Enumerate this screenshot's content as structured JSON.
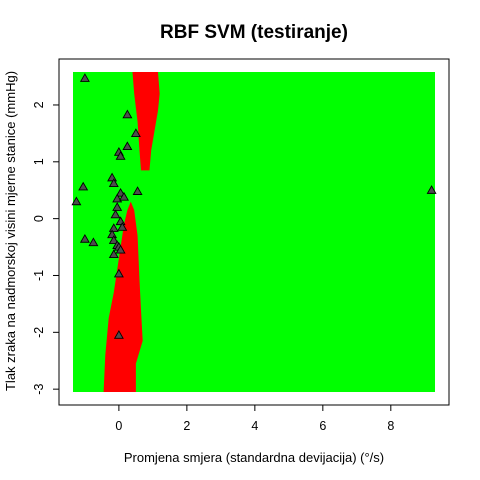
{
  "chart_data": {
    "type": "scatter",
    "title": "RBF SVM (testiranje)",
    "xlabel": "Promjena smjera (standardna devijacija) (°/s)",
    "ylabel": "Tlak zraka na nadmorskoj visini mjerne stanice (mmHg)",
    "xlim": [
      -1.35,
      9.3
    ],
    "ylim": [
      -3.05,
      2.58
    ],
    "x_ticks": [
      "0",
      "2",
      "4",
      "6",
      "8"
    ],
    "y_ticks": [
      "-3",
      "-2",
      "-1",
      "0",
      "1",
      "2"
    ],
    "grid": false,
    "legend": "none",
    "colors": {
      "background_region": "#00ff00",
      "boundary_region": "#ff0000",
      "marker_fill": "#4d4d4d",
      "marker_edge": "#000000"
    },
    "marker_shape": "triangle",
    "decision_regions": [
      {
        "class_color": "#ff0000",
        "description_shape": "upper band",
        "polygon": [
          [
            0.4,
            2.58
          ],
          [
            1.15,
            2.58
          ],
          [
            1.2,
            2.2
          ],
          [
            1.15,
            1.9
          ],
          [
            1.05,
            1.55
          ],
          [
            0.95,
            1.2
          ],
          [
            0.9,
            0.85
          ],
          [
            0.65,
            0.85
          ],
          [
            0.6,
            1.25
          ],
          [
            0.55,
            1.7
          ],
          [
            0.45,
            2.2
          ]
        ]
      },
      {
        "class_color": "#ff0000",
        "description_shape": "lower band",
        "polygon": [
          [
            0.35,
            0.3
          ],
          [
            0.45,
            0.15
          ],
          [
            0.55,
            -0.3
          ],
          [
            0.6,
            -1.0
          ],
          [
            0.65,
            -1.6
          ],
          [
            0.7,
            -2.15
          ],
          [
            0.5,
            -2.55
          ],
          [
            0.5,
            -3.05
          ],
          [
            -0.45,
            -3.05
          ],
          [
            -0.4,
            -2.4
          ],
          [
            -0.3,
            -1.75
          ],
          [
            -0.15,
            -1.3
          ],
          [
            -0.05,
            -0.9
          ],
          [
            0.05,
            -0.5
          ],
          [
            0.15,
            -0.1
          ],
          [
            0.25,
            0.15
          ]
        ]
      }
    ],
    "points": [
      {
        "x": -1.0,
        "y": 2.47
      },
      {
        "x": 0.25,
        "y": 1.83
      },
      {
        "x": 0.5,
        "y": 1.5
      },
      {
        "x": 0.25,
        "y": 1.27
      },
      {
        "x": 0.0,
        "y": 1.17
      },
      {
        "x": 0.05,
        "y": 1.1
      },
      {
        "x": -0.2,
        "y": 0.72
      },
      {
        "x": -0.15,
        "y": 0.62
      },
      {
        "x": -1.05,
        "y": 0.56
      },
      {
        "x": 0.05,
        "y": 0.45
      },
      {
        "x": 0.55,
        "y": 0.48
      },
      {
        "x": -0.05,
        "y": 0.35
      },
      {
        "x": 0.15,
        "y": 0.38
      },
      {
        "x": -1.25,
        "y": 0.3
      },
      {
        "x": -0.05,
        "y": 0.2
      },
      {
        "x": -0.1,
        "y": 0.07
      },
      {
        "x": 0.05,
        "y": -0.05
      },
      {
        "x": -0.15,
        "y": -0.17
      },
      {
        "x": 0.1,
        "y": -0.15
      },
      {
        "x": -0.2,
        "y": -0.28
      },
      {
        "x": -1.0,
        "y": -0.36
      },
      {
        "x": -0.75,
        "y": -0.42
      },
      {
        "x": -0.15,
        "y": -0.38
      },
      {
        "x": -0.05,
        "y": -0.47
      },
      {
        "x": 0.0,
        "y": -0.5
      },
      {
        "x": 0.05,
        "y": -0.55
      },
      {
        "x": -0.15,
        "y": -0.63
      },
      {
        "x": 0.0,
        "y": -0.97
      },
      {
        "x": 0.0,
        "y": -2.05
      },
      {
        "x": 9.2,
        "y": 0.5
      }
    ]
  }
}
